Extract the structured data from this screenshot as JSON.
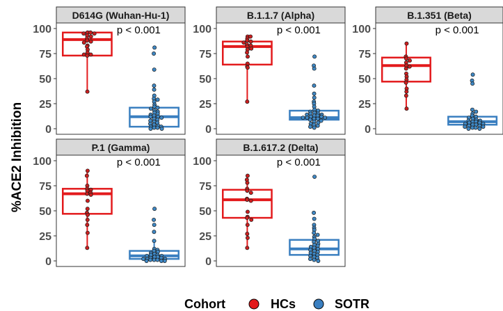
{
  "chart_data": {
    "type": "box",
    "ylabel": "%ACE2 Inhibition",
    "ylim": [
      0,
      100
    ],
    "yticks": [
      "0",
      "25",
      "50",
      "75",
      "100"
    ],
    "grid": false,
    "legend": {
      "title": "Cohort",
      "placement": "bottom",
      "entries": [
        {
          "name": "HCs",
          "color": "#e31a1c"
        },
        {
          "name": "SOTR",
          "color": "#3a7fc0"
        }
      ]
    },
    "panels": [
      {
        "title": "D614G (Wuhan-Hu-1)",
        "annotation": "p < 0.001",
        "groups": [
          {
            "cohort": "HCs",
            "box": {
              "min": 37,
              "q1": 73,
              "median": 89,
              "q3": 96,
              "max": 96
            },
            "points": [
              96,
              96,
              95,
              95,
              93,
              92,
              90,
              88,
              87,
              86,
              83,
              82,
              79,
              76,
              74,
              74,
              73,
              37
            ]
          },
          {
            "cohort": "SOTR",
            "box": {
              "min": 0,
              "q1": 2,
              "median": 12,
              "q3": 21,
              "max": 34
            },
            "points": [
              81,
              75,
              59,
              43,
              39,
              33,
              30,
              29,
              27,
              24,
              22,
              21,
              20,
              18,
              17,
              16,
              15,
              14,
              13,
              12,
              12,
              11,
              10,
              9,
              8,
              7,
              6,
              5,
              4,
              3,
              2,
              2,
              1,
              1,
              0,
              0
            ]
          }
        ]
      },
      {
        "title": "B.1.1.7 (Alpha)",
        "annotation": "p < 0.001",
        "groups": [
          {
            "cohort": "HCs",
            "box": {
              "min": 27,
              "q1": 64,
              "median": 82,
              "q3": 87,
              "max": 92
            },
            "points": [
              92,
              92,
              90,
              88,
              87,
              86,
              84,
              83,
              82,
              80,
              79,
              76,
              72,
              65,
              62,
              61,
              27
            ]
          },
          {
            "cohort": "SOTR",
            "box": {
              "min": 0,
              "q1": 9,
              "median": 11,
              "q3": 18,
              "max": 28
            },
            "points": [
              72,
              63,
              60,
              43,
              35,
              31,
              27,
              25,
              22,
              19,
              18,
              17,
              16,
              15,
              15,
              14,
              14,
              13,
              13,
              12,
              12,
              11,
              11,
              11,
              10,
              10,
              9,
              8,
              7,
              6,
              5,
              4,
              3,
              2,
              1
            ]
          }
        ]
      },
      {
        "title": "B.1.351 (Beta)",
        "annotation": "p < 0.001",
        "groups": [
          {
            "cohort": "HCs",
            "box": {
              "min": 20,
              "q1": 47,
              "median": 63,
              "q3": 71,
              "max": 85
            },
            "points": [
              85,
              72,
              70,
              68,
              66,
              63,
              62,
              60,
              55,
              52,
              49,
              46,
              40,
              37,
              33,
              20
            ]
          },
          {
            "cohort": "SOTR",
            "box": {
              "min": 0,
              "q1": 4,
              "median": 7,
              "q3": 12,
              "max": 19
            },
            "points": [
              54,
              48,
              45,
              19,
              17,
              15,
              13,
              12,
              11,
              10,
              9,
              8,
              8,
              7,
              7,
              6,
              6,
              5,
              5,
              4,
              4,
              3,
              3,
              2,
              2,
              1,
              1,
              0,
              0
            ]
          }
        ]
      },
      {
        "title": "P.1 (Gamma)",
        "annotation": "p < 0.001",
        "groups": [
          {
            "cohort": "HCs",
            "box": {
              "min": 13,
              "q1": 47,
              "median": 67,
              "q3": 72,
              "max": 90
            },
            "points": [
              90,
              85,
              75,
              72,
              71,
              70,
              68,
              67,
              66,
              60,
              52,
              48,
              46,
              41,
              36,
              28,
              13
            ]
          },
          {
            "cohort": "SOTR",
            "box": {
              "min": 0,
              "q1": 2,
              "median": 5,
              "q3": 10,
              "max": 20
            },
            "points": [
              52,
              41,
              36,
              29,
              20,
              12,
              11,
              10,
              9,
              8,
              7,
              6,
              6,
              5,
              5,
              4,
              4,
              3,
              3,
              2,
              2,
              2,
              1,
              1,
              1,
              0,
              0,
              0
            ]
          }
        ]
      },
      {
        "title": "B.1.617.2 (Delta)",
        "annotation": "p < 0.001",
        "groups": [
          {
            "cohort": "HCs",
            "box": {
              "min": 13,
              "q1": 43,
              "median": 61,
              "q3": 71,
              "max": 85
            },
            "points": [
              85,
              81,
              78,
              72,
              70,
              68,
              62,
              61,
              60,
              49,
              44,
              43,
              41,
              36,
              27,
              23,
              13
            ]
          },
          {
            "cohort": "SOTR",
            "box": {
              "min": 0,
              "q1": 6,
              "median": 12,
              "q3": 21,
              "max": 34
            },
            "points": [
              84,
              48,
              42,
              36,
              33,
              31,
              28,
              26,
              24,
              22,
              20,
              19,
              17,
              16,
              15,
              14,
              13,
              12,
              11,
              10,
              9,
              8,
              7,
              6,
              5,
              4,
              3,
              2,
              1,
              0
            ]
          }
        ]
      }
    ]
  }
}
